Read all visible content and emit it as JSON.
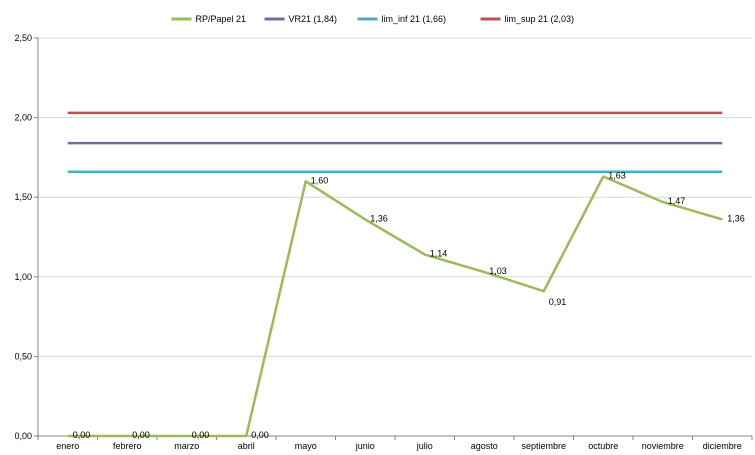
{
  "chart_data": {
    "type": "line",
    "categories": [
      "enero",
      "febrero",
      "marzo",
      "abril",
      "mayo",
      "junio",
      "julio",
      "agosto",
      "septiembre",
      "octubre",
      "noviembre",
      "diciembre"
    ],
    "ylim": [
      0,
      2.5
    ],
    "yticks": [
      "0,00",
      "0,50",
      "1,00",
      "1,50",
      "2,00",
      "2,50"
    ],
    "grid": true,
    "legend_position": "top",
    "series": [
      {
        "name": "RP/Papel 21",
        "color": "#9bbb59",
        "values": [
          0.0,
          0.0,
          0.0,
          0.0,
          1.6,
          1.36,
          1.14,
          1.03,
          0.91,
          1.63,
          1.47,
          1.36
        ],
        "labels": [
          "0,00",
          "0,00",
          "0,00",
          "0,00",
          "1,60",
          "1,36",
          "1,14",
          "1,03",
          "0,91",
          "1,63",
          "1,47",
          "1,36"
        ]
      },
      {
        "name": "VR21 (1,84)",
        "color": "#8064a2",
        "values": [
          1.84,
          1.84,
          1.84,
          1.84,
          1.84,
          1.84,
          1.84,
          1.84,
          1.84,
          1.84,
          1.84,
          1.84
        ]
      },
      {
        "name": "lim_inf 21 (1,66)",
        "color": "#4bacc6",
        "values": [
          1.66,
          1.66,
          1.66,
          1.66,
          1.66,
          1.66,
          1.66,
          1.66,
          1.66,
          1.66,
          1.66,
          1.66
        ]
      },
      {
        "name": "lim_sup 21 (2,03)",
        "color": "#c0504d",
        "values": [
          2.03,
          2.03,
          2.03,
          2.03,
          2.03,
          2.03,
          2.03,
          2.03,
          2.03,
          2.03,
          2.03,
          2.03
        ]
      }
    ]
  }
}
